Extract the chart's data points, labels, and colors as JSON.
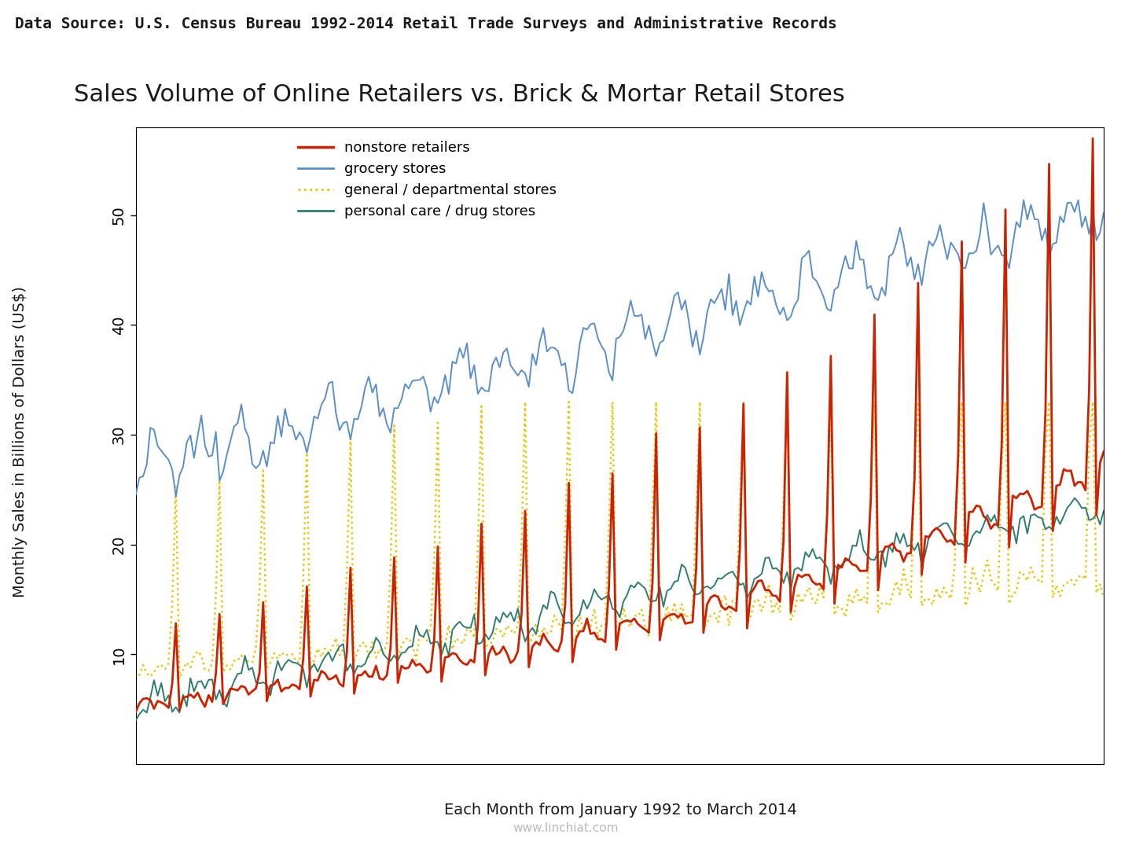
{
  "title": "Sales Volume of Online Retailers vs. Brick & Mortar Retail Stores",
  "subtitle": "Data Source: U.S. Census Bureau 1992-2014 Retail Trade Surveys and Administrative Records",
  "xlabel": "Each Month from January 1992 to March 2014",
  "ylabel": "Monthly Sales in Billions of Dollars (US$)",
  "watermark": "www.linchiat.com",
  "header_bg": "#7d9e90",
  "header_text_color": "#1a1a1a",
  "background_color": "#ffffff",
  "plot_bg": "#ffffff",
  "legend_labels": [
    "nonstore retailers",
    "grocery stores",
    "general / departmental stores",
    "personal care / drug stores"
  ],
  "line_colors": [
    "#cc2200",
    "#5b8fc9",
    "#e8c000",
    "#2e7d6e"
  ],
  "ylim": [
    0,
    58
  ],
  "yticks": [
    10,
    20,
    30,
    40,
    50
  ],
  "title_fontsize": 22,
  "axis_label_fontsize": 14,
  "tick_fontsize": 14,
  "legend_fontsize": 13,
  "header_fontsize": 14
}
